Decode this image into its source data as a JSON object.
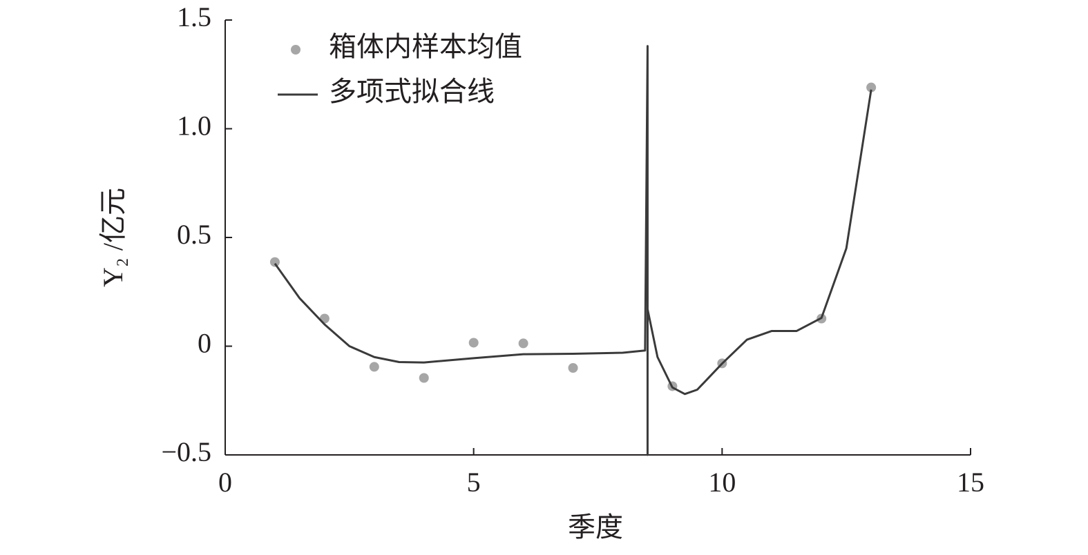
{
  "chart_data": {
    "type": "scatter",
    "x_label": "季度",
    "y_label": "Y₂ /亿元",
    "xlim": [
      0,
      15
    ],
    "xticks": [
      0,
      5,
      10,
      15
    ],
    "ylim": [
      -0.5,
      1.5
    ],
    "yticks": [
      {
        "value": -0.5,
        "label": "−0.5"
      },
      0,
      0.5,
      {
        "value": 1,
        "label": "1.0"
      },
      1.5
    ],
    "series": [
      {
        "name": "箱体内样本均值",
        "kind": "points",
        "color": "#a6a6a6",
        "x": [
          1,
          2,
          3,
          4,
          5,
          6,
          7,
          9,
          10,
          12,
          13
        ],
        "values": [
          0.387,
          0.127,
          -0.095,
          -0.146,
          0.016,
          0.013,
          -0.1,
          -0.184,
          -0.079,
          0.127,
          1.19
        ]
      },
      {
        "name": "多项式拟合线",
        "kind": "line",
        "color": "#3a3a3a",
        "x": [
          1,
          1.5,
          2,
          2.5,
          3,
          3.5,
          4,
          5,
          6,
          7,
          8,
          8.45,
          8.5,
          8.5,
          8.5,
          8.7,
          9,
          9.25,
          9.5,
          10,
          10.5,
          11,
          11.5,
          12,
          12.5,
          13
        ],
        "values": [
          0.38,
          0.22,
          0.1,
          0.0,
          -0.05,
          -0.073,
          -0.075,
          -0.055,
          -0.037,
          -0.035,
          -0.03,
          -0.02,
          1.38,
          -0.5,
          0.17,
          -0.05,
          -0.19,
          -0.22,
          -0.2,
          -0.08,
          0.03,
          0.07,
          0.07,
          0.13,
          0.45,
          1.18
        ]
      }
    ]
  }
}
